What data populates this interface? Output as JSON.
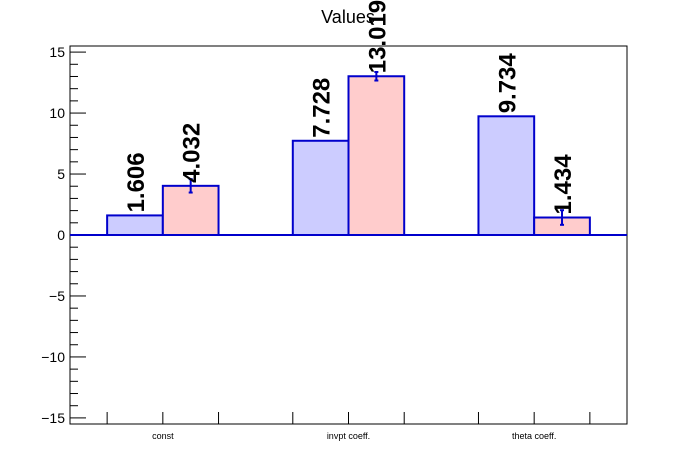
{
  "chart_data": {
    "type": "bar",
    "title": "Values",
    "categories": [
      "const",
      "invpt coeff.",
      "theta coeff."
    ],
    "series": [
      {
        "values": [
          1.606,
          7.728,
          9.734
        ],
        "errors": [
          0.0,
          0.0,
          0.0
        ],
        "labels": [
          "1.606",
          "7.728",
          "9.734"
        ],
        "fill": "#ccccff"
      },
      {
        "values": [
          4.032,
          13.019,
          1.434
        ],
        "errors": [
          0.55,
          0.35,
          0.6
        ],
        "labels": [
          "4.032",
          "13.019",
          "1.434"
        ],
        "fill": "#ffcccc"
      }
    ],
    "ylim": [
      -15.5,
      15.5
    ],
    "yticks": [
      -15,
      -10,
      -5,
      0,
      5,
      10,
      15
    ],
    "ytick_labels": [
      "−15",
      "−10",
      "−5",
      "0",
      "5",
      "10",
      "15"
    ],
    "grid": false,
    "colors": {
      "edge": "#0000cc",
      "zero_line": "#0000cc",
      "frame": "#000000"
    }
  }
}
